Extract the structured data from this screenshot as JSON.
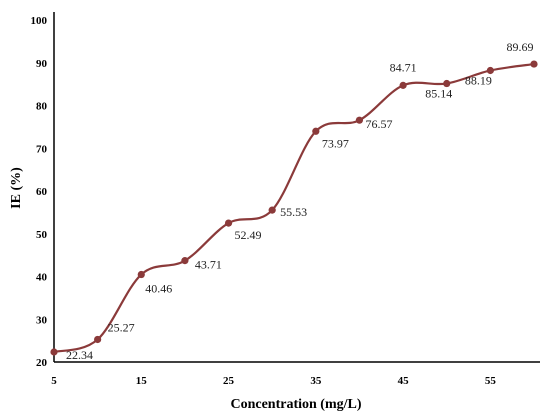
{
  "chart_data": {
    "type": "line",
    "xlabel": "Concentration (mg/L)",
    "ylabel": "IE (%)",
    "xlim": [
      5,
      60
    ],
    "ylim": [
      20,
      100
    ],
    "x_ticks": [
      5,
      15,
      25,
      35,
      45,
      55
    ],
    "y_ticks": [
      20,
      30,
      40,
      50,
      60,
      70,
      80,
      90,
      100
    ],
    "grid": false,
    "smooth": true,
    "series_color": "#8B3A3A",
    "series": [
      {
        "x": [
          5,
          10,
          15,
          20,
          25,
          30,
          35,
          40,
          45,
          50,
          55,
          60
        ],
        "values": [
          22.34,
          25.27,
          40.46,
          43.71,
          52.49,
          55.53,
          73.97,
          76.57,
          84.71,
          85.14,
          88.19,
          89.69
        ],
        "labels": [
          "22.34",
          "25.27",
          "40.46",
          "43.71",
          "52.49",
          "55.53",
          "73.97",
          "76.57",
          "84.71",
          "85.14",
          "88.19",
          "89.69"
        ]
      }
    ]
  }
}
